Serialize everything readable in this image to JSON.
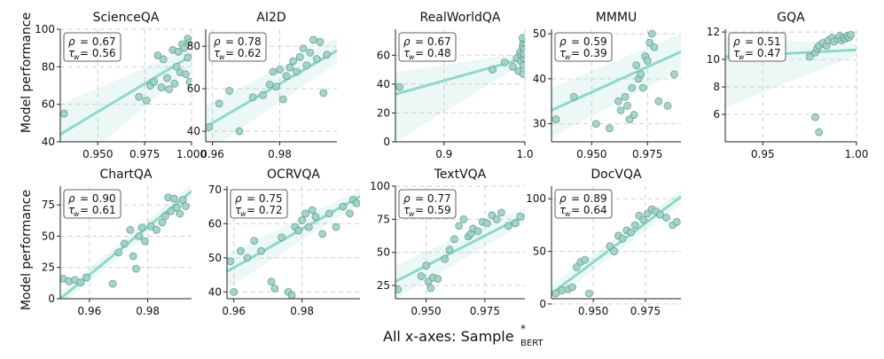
{
  "figure": {
    "ylabel": "Model performance",
    "xlabel_main": "All x-axes: Sample",
    "xlabel_sup": "*",
    "xlabel_sub": "BERT"
  },
  "chart_data": [
    {
      "type": "scatter",
      "title": "ScienceQA",
      "xlim": [
        0.93,
        1.0
      ],
      "ylim": [
        40,
        100
      ],
      "xticks": [
        0.95,
        0.975,
        1.0
      ],
      "xtick_labels": [
        "0.950",
        "0.975",
        "1.000"
      ],
      "yticks": [
        40,
        60,
        80,
        100
      ],
      "ytick_labels": [
        "40",
        "60",
        "80",
        "100"
      ],
      "legend": {
        "rho": "= 0.67",
        "tau": "= 0.56"
      },
      "line": [
        44,
        86
      ],
      "band_lo": [
        20,
        80
      ],
      "band_hi": [
        60,
        90
      ],
      "x": [
        0.932,
        0.972,
        0.976,
        0.978,
        0.98,
        0.982,
        0.984,
        0.985,
        0.987,
        0.988,
        0.99,
        0.991,
        0.992,
        0.993,
        0.994,
        0.995,
        0.996,
        0.997,
        0.998,
        0.999,
        0.999,
        0.998
      ],
      "y": [
        55,
        64,
        62,
        70,
        72,
        86,
        69,
        84,
        74,
        68,
        89,
        71,
        80,
        88,
        77,
        92,
        90,
        76,
        95,
        93,
        72,
        85
      ]
    },
    {
      "type": "scatter",
      "title": "AI2D",
      "xlim": [
        0.958,
        0.997
      ],
      "ylim": [
        35,
        88
      ],
      "xticks": [
        0.96,
        0.98
      ],
      "xtick_labels": [
        "0.96",
        "0.98"
      ],
      "yticks": [
        40,
        60,
        80
      ],
      "ytick_labels": [
        "40",
        "60",
        "80"
      ],
      "legend": {
        "rho": "= 0.78",
        "tau": "= 0.62"
      },
      "line": [
        42,
        78
      ],
      "band_lo": [
        30,
        72
      ],
      "band_hi": [
        52,
        84
      ],
      "x": [
        0.959,
        0.962,
        0.965,
        0.968,
        0.972,
        0.975,
        0.977,
        0.978,
        0.979,
        0.98,
        0.981,
        0.982,
        0.983,
        0.984,
        0.985,
        0.986,
        0.987,
        0.988,
        0.989,
        0.99,
        0.991,
        0.992,
        0.993,
        0.994
      ],
      "y": [
        42,
        53,
        59,
        40,
        56,
        57,
        62,
        68,
        61,
        69,
        55,
        66,
        70,
        73,
        68,
        75,
        79,
        71,
        77,
        83,
        74,
        82,
        58,
        76
      ]
    },
    {
      "type": "scatter",
      "title": "RealWorldQA",
      "xlim": [
        0.84,
        1.0
      ],
      "ylim": [
        0,
        78
      ],
      "xticks": [
        0.9,
        1.0
      ],
      "xtick_labels": [
        "0.9",
        "1.0"
      ],
      "yticks": [
        0,
        20,
        40,
        60
      ],
      "ytick_labels": [
        "0",
        "20",
        "40",
        "60"
      ],
      "legend": {
        "rho": "= 0.67",
        "tau": "= 0.48"
      },
      "line": [
        33,
        58
      ],
      "band_lo": [
        0,
        55
      ],
      "band_hi": [
        48,
        62
      ],
      "x": [
        0.845,
        0.96,
        0.975,
        0.985,
        0.99,
        0.992,
        0.994,
        0.995,
        0.996,
        0.997,
        0.998,
        0.998,
        0.999,
        0.999,
        0.999,
        0.999,
        0.998,
        0.997
      ],
      "y": [
        38,
        50,
        55,
        52,
        58,
        49,
        62,
        56,
        60,
        66,
        69,
        53,
        64,
        71,
        58,
        61,
        47,
        72
      ]
    },
    {
      "type": "scatter",
      "title": "MMMU",
      "xlim": [
        0.932,
        0.99
      ],
      "ylim": [
        26,
        51
      ],
      "xticks": [
        0.95,
        0.975
      ],
      "xtick_labels": [
        "0.950",
        "0.975"
      ],
      "yticks": [
        30,
        40,
        50
      ],
      "ytick_labels": [
        "30",
        "40",
        "50"
      ],
      "legend": {
        "rho": "= 0.59",
        "tau": "= 0.39"
      },
      "line": [
        33,
        46
      ],
      "band_lo": [
        27,
        42
      ],
      "band_hi": [
        38,
        50
      ],
      "x": [
        0.934,
        0.942,
        0.952,
        0.958,
        0.962,
        0.963,
        0.965,
        0.966,
        0.967,
        0.968,
        0.969,
        0.97,
        0.971,
        0.972,
        0.973,
        0.974,
        0.975,
        0.976,
        0.977,
        0.978,
        0.98,
        0.984,
        0.987
      ],
      "y": [
        31,
        36,
        30,
        29,
        35,
        33,
        36,
        34,
        31,
        38,
        32,
        43,
        40,
        41,
        38,
        45,
        44,
        48,
        50,
        47,
        35,
        34,
        41
      ]
    },
    {
      "type": "scatter",
      "title": "GQA",
      "xlim": [
        0.93,
        1.0
      ],
      "ylim": [
        4,
        12.2
      ],
      "xticks": [
        0.95,
        1.0
      ],
      "xtick_labels": [
        "0.95",
        "1.00"
      ],
      "yticks": [
        6,
        8,
        10,
        12
      ],
      "ytick_labels": [
        "6",
        "8",
        "10",
        "12"
      ],
      "legend": {
        "rho": "= 0.51",
        "tau": "= 0.47"
      },
      "line": [
        10.2,
        10.7
      ],
      "band_lo": [
        6.5,
        10.3
      ],
      "band_hi": [
        11.6,
        11.1
      ],
      "x": [
        0.96,
        0.975,
        0.978,
        0.979,
        0.98,
        0.982,
        0.984,
        0.985,
        0.987,
        0.988,
        0.99,
        0.991,
        0.992,
        0.993,
        0.994,
        0.995,
        0.996,
        0.997,
        0.978,
        0.98
      ],
      "y": [
        11.0,
        10.2,
        10.5,
        10.8,
        11.0,
        11.2,
        11.0,
        11.4,
        11.6,
        11.3,
        11.5,
        11.7,
        11.4,
        11.6,
        11.5,
        11.7,
        11.6,
        11.8,
        5.8,
        4.7
      ]
    },
    {
      "type": "scatter",
      "title": "ChartQA",
      "xlim": [
        0.95,
        0.995
      ],
      "ylim": [
        0,
        90
      ],
      "xticks": [
        0.96,
        0.98
      ],
      "xtick_labels": [
        "0.96",
        "0.98"
      ],
      "yticks": [
        0,
        25,
        50,
        75
      ],
      "ytick_labels": [
        "0",
        "25",
        "50",
        "75"
      ],
      "legend": {
        "rho": "= 0.90",
        "tau": "= 0.61"
      },
      "line": [
        0,
        86
      ],
      "band_lo": [
        -5,
        80
      ],
      "band_hi": [
        5,
        92
      ],
      "x": [
        0.951,
        0.953,
        0.955,
        0.957,
        0.959,
        0.968,
        0.97,
        0.972,
        0.974,
        0.975,
        0.976,
        0.977,
        0.978,
        0.979,
        0.981,
        0.983,
        0.985,
        0.986,
        0.987,
        0.988,
        0.989,
        0.99,
        0.991,
        0.992,
        0.993
      ],
      "y": [
        16,
        14,
        15,
        13,
        17,
        12,
        37,
        44,
        55,
        34,
        24,
        50,
        57,
        46,
        58,
        55,
        61,
        66,
        81,
        70,
        80,
        73,
        68,
        79,
        74
      ]
    },
    {
      "type": "scatter",
      "title": "OCRVQA",
      "xlim": [
        0.958,
        0.997
      ],
      "ylim": [
        38,
        71
      ],
      "xticks": [
        0.96,
        0.98
      ],
      "xtick_labels": [
        "0.96",
        "0.98"
      ],
      "yticks": [
        40,
        50,
        60,
        70
      ],
      "ytick_labels": [
        "40",
        "50",
        "60",
        "70"
      ],
      "legend": {
        "rho": "= 0.75",
        "tau": "= 0.72"
      },
      "line": [
        46,
        68
      ],
      "band_lo": [
        41,
        66
      ],
      "band_hi": [
        51,
        70
      ],
      "x": [
        0.959,
        0.96,
        0.962,
        0.964,
        0.966,
        0.968,
        0.971,
        0.972,
        0.974,
        0.976,
        0.977,
        0.978,
        0.979,
        0.98,
        0.981,
        0.982,
        0.983,
        0.984,
        0.986,
        0.988,
        0.99,
        0.992,
        0.994,
        0.995,
        0.996
      ],
      "y": [
        49,
        40,
        52,
        50,
        55,
        52,
        43,
        41,
        56,
        40,
        39,
        59,
        58,
        61,
        63,
        59,
        64,
        62,
        57,
        63,
        59,
        65,
        63,
        67,
        66
      ]
    },
    {
      "type": "scatter",
      "title": "TextVQA",
      "xlim": [
        0.937,
        0.992
      ],
      "ylim": [
        15,
        100
      ],
      "xticks": [
        0.95,
        0.975
      ],
      "xtick_labels": [
        "0.950",
        "0.975"
      ],
      "yticks": [
        25,
        50,
        75,
        100
      ],
      "ytick_labels": [
        "25",
        "50",
        "75",
        "100"
      ],
      "legend": {
        "rho": "= 0.77",
        "tau": "= 0.59"
      },
      "line": [
        28,
        78
      ],
      "band_lo": [
        15,
        72
      ],
      "band_hi": [
        40,
        84
      ],
      "x": [
        0.938,
        0.948,
        0.95,
        0.951,
        0.952,
        0.953,
        0.955,
        0.958,
        0.96,
        0.962,
        0.964,
        0.966,
        0.968,
        0.969,
        0.97,
        0.972,
        0.974,
        0.976,
        0.978,
        0.98,
        0.982,
        0.985,
        0.988,
        0.99
      ],
      "y": [
        22,
        32,
        40,
        28,
        23,
        31,
        30,
        45,
        52,
        60,
        70,
        75,
        62,
        64,
        68,
        66,
        73,
        72,
        78,
        75,
        80,
        70,
        72,
        77
      ]
    },
    {
      "type": "scatter",
      "title": "DocVQA",
      "xlim": [
        0.93,
        0.992
      ],
      "ylim": [
        5,
        112
      ],
      "xticks": [
        0.95,
        0.975
      ],
      "xtick_labels": [
        "0.950",
        "0.975"
      ],
      "yticks": [
        0,
        50,
        100
      ],
      "ytick_labels": [
        "0",
        "50",
        "100"
      ],
      "legend": {
        "rho": "= 0.89",
        "tau": "= 0.64"
      },
      "line": [
        10,
        102
      ],
      "band_lo": [
        2,
        95
      ],
      "band_hi": [
        18,
        108
      ],
      "x": [
        0.932,
        0.935,
        0.938,
        0.94,
        0.942,
        0.944,
        0.946,
        0.948,
        0.958,
        0.96,
        0.962,
        0.964,
        0.966,
        0.968,
        0.97,
        0.972,
        0.974,
        0.976,
        0.978,
        0.98,
        0.982,
        0.985,
        0.988,
        0.99
      ],
      "y": [
        10,
        13,
        14,
        16,
        35,
        40,
        42,
        10,
        55,
        50,
        65,
        62,
        70,
        68,
        75,
        84,
        80,
        86,
        90,
        88,
        85,
        82,
        75,
        78
      ]
    }
  ]
}
